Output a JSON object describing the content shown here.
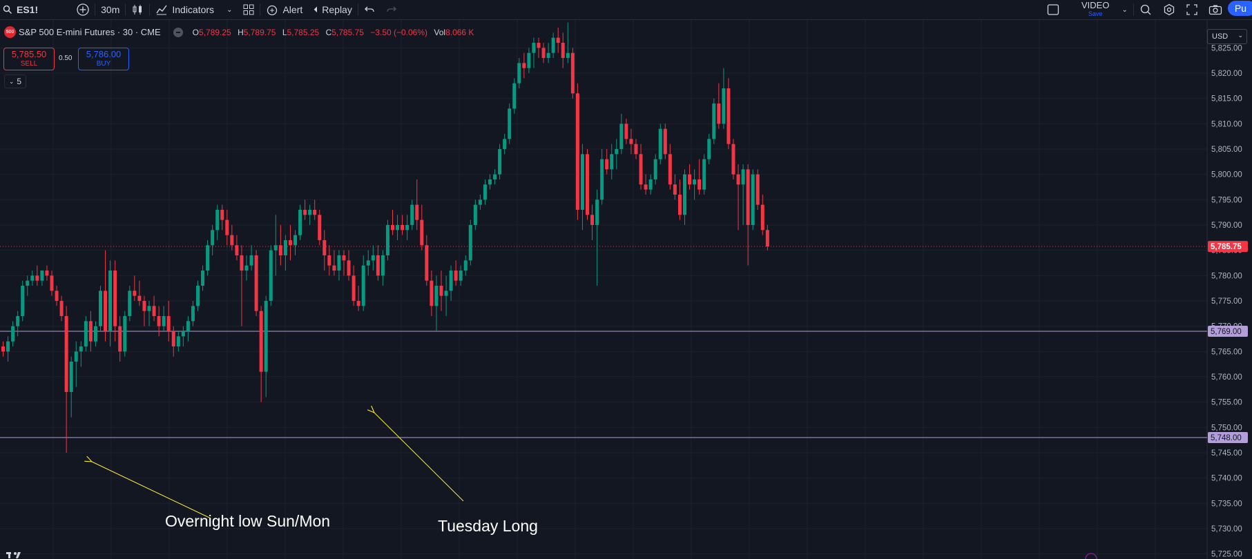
{
  "toolbar": {
    "symbol": "ES1!",
    "interval": "30m",
    "indicators": "Indicators",
    "alert": "Alert",
    "replay": "Replay",
    "video": "VIDEO",
    "video_sub": "Save",
    "publish": "Pu"
  },
  "legend": {
    "badge": "500",
    "title": "S&P 500 E-mini Futures · 30 · CME",
    "o_key": "O",
    "o": "5,789.25",
    "h_key": "H",
    "h": "5,789.75",
    "l_key": "L",
    "l": "5,785.25",
    "c_key": "C",
    "c": "5,785.75",
    "change": "−3.50 (−0.06%)",
    "vol_key": "Vol",
    "vol": "8.066 K"
  },
  "trade": {
    "sell_price": "5,785.50",
    "sell_label": "SELL",
    "spread": "0.50",
    "buy_price": "5,786.00",
    "buy_label": "BUY",
    "collapse_count": "5"
  },
  "currency": "USD",
  "colors": {
    "up": "#089981",
    "down": "#f23645",
    "bg": "#131722",
    "line": "#b39ddb",
    "arrow": "#ffeb3b"
  },
  "price_axis": {
    "ticks": [
      "5,825.00",
      "5,820.00",
      "5,815.00",
      "5,810.00",
      "5,805.00",
      "5,800.00",
      "5,795.00",
      "5,790.00",
      "5,785.00",
      "5,780.00",
      "5,775.00",
      "5,770.00",
      "5,765.00",
      "5,760.00",
      "5,755.00",
      "5,750.00",
      "5,745.00",
      "5,740.00",
      "5,735.00",
      "5,730.00",
      "5,725.00"
    ],
    "tick_values": [
      5825,
      5820,
      5815,
      5810,
      5805,
      5800,
      5795,
      5790,
      5785,
      5780,
      5775,
      5770,
      5765,
      5760,
      5755,
      5750,
      5745,
      5740,
      5735,
      5730,
      5725
    ],
    "current_label": "5,785.75",
    "current_value": 5785.75,
    "line1_label": "5,769.00",
    "line1_value": 5769,
    "line2_label": "5,748.00",
    "line2_value": 5748
  },
  "annotations": {
    "overnight": "Overnight low Sun/Mon",
    "tuesday": "Tuesday Long"
  },
  "chart_data": {
    "type": "candlestick",
    "ylim": [
      5724,
      5830.5
    ],
    "candles": [
      [
        5766,
        5767,
        5764,
        5765
      ],
      [
        5765,
        5768,
        5763,
        5767
      ],
      [
        5767,
        5771,
        5766,
        5770
      ],
      [
        5770,
        5773,
        5768,
        5772
      ],
      [
        5772,
        5779,
        5771,
        5778
      ],
      [
        5778,
        5780,
        5776,
        5779
      ],
      [
        5779,
        5781,
        5778,
        5780
      ],
      [
        5780,
        5782,
        5778,
        5779
      ],
      [
        5779,
        5781,
        5778,
        5781
      ],
      [
        5781,
        5782,
        5779,
        5780
      ],
      [
        5780,
        5781,
        5776,
        5777
      ],
      [
        5777,
        5778,
        5774,
        5775
      ],
      [
        5775,
        5776,
        5771,
        5772
      ],
      [
        5772,
        5774,
        5745,
        5757
      ],
      [
        5757,
        5764,
        5752,
        5763
      ],
      [
        5763,
        5767,
        5758,
        5765
      ],
      [
        5765,
        5767,
        5762,
        5766
      ],
      [
        5766,
        5772,
        5765,
        5771
      ],
      [
        5771,
        5773,
        5765,
        5767
      ],
      [
        5767,
        5771,
        5766,
        5770
      ],
      [
        5770,
        5778,
        5769,
        5777
      ],
      [
        5777,
        5785,
        5767,
        5769
      ],
      [
        5769,
        5783,
        5766,
        5781
      ],
      [
        5781,
        5783,
        5767,
        5770
      ],
      [
        5770,
        5772,
        5763,
        5765
      ],
      [
        5765,
        5773,
        5764,
        5772
      ],
      [
        5772,
        5778,
        5771,
        5777
      ],
      [
        5777,
        5780,
        5775,
        5776
      ],
      [
        5776,
        5779,
        5774,
        5775
      ],
      [
        5775,
        5776,
        5770,
        5773
      ],
      [
        5773,
        5775,
        5770,
        5774
      ],
      [
        5774,
        5776,
        5771,
        5772
      ],
      [
        5772,
        5774,
        5768,
        5770
      ],
      [
        5770,
        5774,
        5769,
        5772
      ],
      [
        5772,
        5775,
        5767,
        5769
      ],
      [
        5769,
        5770,
        5764,
        5766
      ],
      [
        5766,
        5769,
        5765,
        5768
      ],
      [
        5768,
        5770,
        5766,
        5769
      ],
      [
        5769,
        5772,
        5767,
        5771
      ],
      [
        5771,
        5775,
        5770,
        5774
      ],
      [
        5774,
        5779,
        5773,
        5778
      ],
      [
        5778,
        5782,
        5777,
        5781
      ],
      [
        5781,
        5787,
        5780,
        5786
      ],
      [
        5786,
        5790,
        5784,
        5789
      ],
      [
        5789,
        5794,
        5787,
        5793
      ],
      [
        5793,
        5794,
        5789,
        5791
      ],
      [
        5791,
        5793,
        5786,
        5788
      ],
      [
        5788,
        5790,
        5785,
        5786
      ],
      [
        5786,
        5788,
        5783,
        5784
      ],
      [
        5784,
        5786,
        5770,
        5781
      ],
      [
        5781,
        5784,
        5779,
        5782
      ],
      [
        5782,
        5786,
        5781,
        5784
      ],
      [
        5784,
        5785,
        5772,
        5773
      ],
      [
        5773,
        5774,
        5755,
        5761
      ],
      [
        5761,
        5776,
        5756,
        5775
      ],
      [
        5775,
        5786,
        5774,
        5785
      ],
      [
        5785,
        5792,
        5780,
        5786
      ],
      [
        5786,
        5790,
        5782,
        5784
      ],
      [
        5784,
        5788,
        5781,
        5787
      ],
      [
        5787,
        5790,
        5783,
        5786
      ],
      [
        5786,
        5789,
        5784,
        5788
      ],
      [
        5788,
        5794,
        5787,
        5793
      ],
      [
        5793,
        5795,
        5791,
        5792
      ],
      [
        5792,
        5794,
        5790,
        5793
      ],
      [
        5793,
        5795,
        5791,
        5792
      ],
      [
        5792,
        5793,
        5786,
        5787
      ],
      [
        5787,
        5789,
        5781,
        5784
      ],
      [
        5784,
        5786,
        5780,
        5782
      ],
      [
        5782,
        5785,
        5780,
        5781
      ],
      [
        5781,
        5785,
        5779,
        5784
      ],
      [
        5784,
        5785,
        5780,
        5783
      ],
      [
        5783,
        5785,
        5779,
        5780
      ],
      [
        5780,
        5782,
        5774,
        5775
      ],
      [
        5775,
        5778,
        5773,
        5774
      ],
      [
        5774,
        5784,
        5773,
        5782
      ],
      [
        5782,
        5785,
        5780,
        5783
      ],
      [
        5783,
        5786,
        5781,
        5784
      ],
      [
        5784,
        5786,
        5779,
        5780
      ],
      [
        5780,
        5785,
        5778,
        5784
      ],
      [
        5784,
        5791,
        5783,
        5790
      ],
      [
        5790,
        5793,
        5788,
        5789
      ],
      [
        5789,
        5792,
        5787,
        5790
      ],
      [
        5790,
        5792,
        5788,
        5789
      ],
      [
        5789,
        5792,
        5787,
        5790
      ],
      [
        5790,
        5795,
        5789,
        5794
      ],
      [
        5794,
        5799,
        5789,
        5791
      ],
      [
        5791,
        5794,
        5785,
        5786
      ],
      [
        5786,
        5788,
        5778,
        5779
      ],
      [
        5779,
        5781,
        5772,
        5774
      ],
      [
        5774,
        5780,
        5769,
        5778
      ],
      [
        5778,
        5781,
        5773,
        5776
      ],
      [
        5776,
        5780,
        5772,
        5777
      ],
      [
        5777,
        5782,
        5775,
        5781
      ],
      [
        5781,
        5783,
        5778,
        5779
      ],
      [
        5779,
        5782,
        5778,
        5781
      ],
      [
        5781,
        5784,
        5780,
        5783
      ],
      [
        5783,
        5791,
        5782,
        5790
      ],
      [
        5790,
        5795,
        5789,
        5794
      ],
      [
        5794,
        5796,
        5793,
        5795
      ],
      [
        5795,
        5799,
        5794,
        5798
      ],
      [
        5798,
        5800,
        5797,
        5799
      ],
      [
        5799,
        5801,
        5798,
        5800
      ],
      [
        5800,
        5806,
        5799,
        5805
      ],
      [
        5805,
        5808,
        5804,
        5807
      ],
      [
        5807,
        5814,
        5806,
        5813
      ],
      [
        5813,
        5819,
        5812,
        5818
      ],
      [
        5818,
        5823,
        5817,
        5822
      ],
      [
        5822,
        5824,
        5819,
        5821
      ],
      [
        5821,
        5825,
        5820,
        5824
      ],
      [
        5824,
        5827,
        5821,
        5826
      ],
      [
        5826,
        5827,
        5823,
        5825
      ],
      [
        5825,
        5826,
        5822,
        5823
      ],
      [
        5823,
        5826,
        5822,
        5824
      ],
      [
        5824,
        5828,
        5823,
        5827
      ],
      [
        5827,
        5829,
        5824,
        5826
      ],
      [
        5826,
        5828,
        5821,
        5823
      ],
      [
        5823,
        5830,
        5822,
        5824
      ],
      [
        5824,
        5825,
        5815,
        5816
      ],
      [
        5816,
        5818,
        5791,
        5793
      ],
      [
        5793,
        5806,
        5789,
        5804
      ],
      [
        5804,
        5805,
        5791,
        5792
      ],
      [
        5792,
        5794,
        5787,
        5790
      ],
      [
        5790,
        5797,
        5778,
        5795
      ],
      [
        5795,
        5805,
        5794,
        5803
      ],
      [
        5803,
        5805,
        5800,
        5801
      ],
      [
        5801,
        5806,
        5799,
        5804
      ],
      [
        5804,
        5807,
        5801,
        5805
      ],
      [
        5805,
        5812,
        5804,
        5810
      ],
      [
        5810,
        5811,
        5806,
        5807
      ],
      [
        5807,
        5809,
        5804,
        5806
      ],
      [
        5806,
        5807,
        5803,
        5804
      ],
      [
        5804,
        5806,
        5797,
        5798
      ],
      [
        5798,
        5800,
        5796,
        5797
      ],
      [
        5797,
        5800,
        5796,
        5799
      ],
      [
        5799,
        5804,
        5798,
        5803
      ],
      [
        5803,
        5810,
        5802,
        5809
      ],
      [
        5809,
        5810,
        5803,
        5804
      ],
      [
        5804,
        5806,
        5797,
        5798
      ],
      [
        5798,
        5800,
        5795,
        5796
      ],
      [
        5796,
        5799,
        5791,
        5792
      ],
      [
        5792,
        5801,
        5790,
        5800
      ],
      [
        5800,
        5802,
        5797,
        5798
      ],
      [
        5798,
        5801,
        5795,
        5799
      ],
      [
        5799,
        5803,
        5796,
        5797
      ],
      [
        5797,
        5804,
        5796,
        5803
      ],
      [
        5803,
        5808,
        5802,
        5807
      ],
      [
        5807,
        5815,
        5806,
        5814
      ],
      [
        5814,
        5818,
        5809,
        5810
      ],
      [
        5810,
        5821,
        5809,
        5817
      ],
      [
        5817,
        5819,
        5805,
        5806
      ],
      [
        5806,
        5807,
        5799,
        5800
      ],
      [
        5800,
        5802,
        5789,
        5798
      ],
      [
        5798,
        5802,
        5790,
        5801
      ],
      [
        5801,
        5802,
        5782,
        5790
      ],
      [
        5790,
        5801,
        5789,
        5800
      ],
      [
        5800,
        5801,
        5793,
        5794
      ],
      [
        5794,
        5796,
        5788,
        5789
      ],
      [
        5789,
        5790,
        5785,
        5785.75
      ]
    ]
  }
}
